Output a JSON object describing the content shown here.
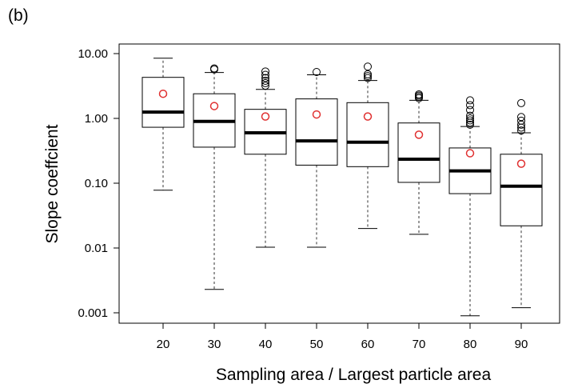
{
  "panel_label": "(b)",
  "chart_data": {
    "type": "box",
    "xlabel": "Sampling area / Largest particle area",
    "ylabel": "Slope coeffcient",
    "y_scale": "log",
    "ylim": [
      0.0007,
      15
    ],
    "y_ticks": [
      {
        "value": 10,
        "label": "10.00"
      },
      {
        "value": 1,
        "label": "1.00"
      },
      {
        "value": 0.1,
        "label": "0.10"
      },
      {
        "value": 0.01,
        "label": "0.01"
      },
      {
        "value": 0.001,
        "label": "0.001"
      }
    ],
    "categories": [
      "20",
      "30",
      "40",
      "50",
      "60",
      "70",
      "80",
      "90"
    ],
    "mean_marker_color": "#e03030",
    "boxes": [
      {
        "category": "20",
        "whisker_low": 0.078,
        "q1": 0.73,
        "median": 1.25,
        "q3": 4.3,
        "whisker_high": 8.5,
        "mean": 2.4,
        "outliers": []
      },
      {
        "category": "30",
        "whisker_low": 0.0023,
        "q1": 0.36,
        "median": 0.9,
        "q3": 2.4,
        "whisker_high": 5.1,
        "mean": 1.55,
        "outliers": [
          5.7,
          5.9
        ]
      },
      {
        "category": "40",
        "whisker_low": 0.0103,
        "q1": 0.28,
        "median": 0.6,
        "q3": 1.38,
        "whisker_high": 2.8,
        "mean": 1.07,
        "outliers": [
          3.2,
          3.5,
          3.8,
          4.2,
          4.7,
          5.3
        ]
      },
      {
        "category": "50",
        "whisker_low": 0.0103,
        "q1": 0.19,
        "median": 0.45,
        "q3": 2.0,
        "whisker_high": 4.7,
        "mean": 1.15,
        "outliers": [
          5.2
        ]
      },
      {
        "category": "60",
        "whisker_low": 0.02,
        "q1": 0.18,
        "median": 0.43,
        "q3": 1.75,
        "whisker_high": 3.85,
        "mean": 1.07,
        "outliers": [
          4.2,
          4.5,
          4.8,
          6.3
        ]
      },
      {
        "category": "70",
        "whisker_low": 0.0163,
        "q1": 0.103,
        "median": 0.235,
        "q3": 0.85,
        "whisker_high": 1.9,
        "mean": 0.56,
        "outliers": [
          2.05,
          2.15,
          2.25,
          2.35
        ]
      },
      {
        "category": "80",
        "whisker_low": 0.0009,
        "q1": 0.069,
        "median": 0.155,
        "q3": 0.35,
        "whisker_high": 0.75,
        "mean": 0.29,
        "outliers": [
          0.8,
          0.86,
          0.93,
          1.0,
          1.1,
          1.35,
          1.6,
          1.9
        ]
      },
      {
        "category": "90",
        "whisker_low": 0.0012,
        "q1": 0.022,
        "median": 0.09,
        "q3": 0.28,
        "whisker_high": 0.6,
        "mean": 0.2,
        "outliers": [
          0.65,
          0.72,
          0.8,
          0.92,
          1.05,
          1.72
        ]
      }
    ]
  }
}
